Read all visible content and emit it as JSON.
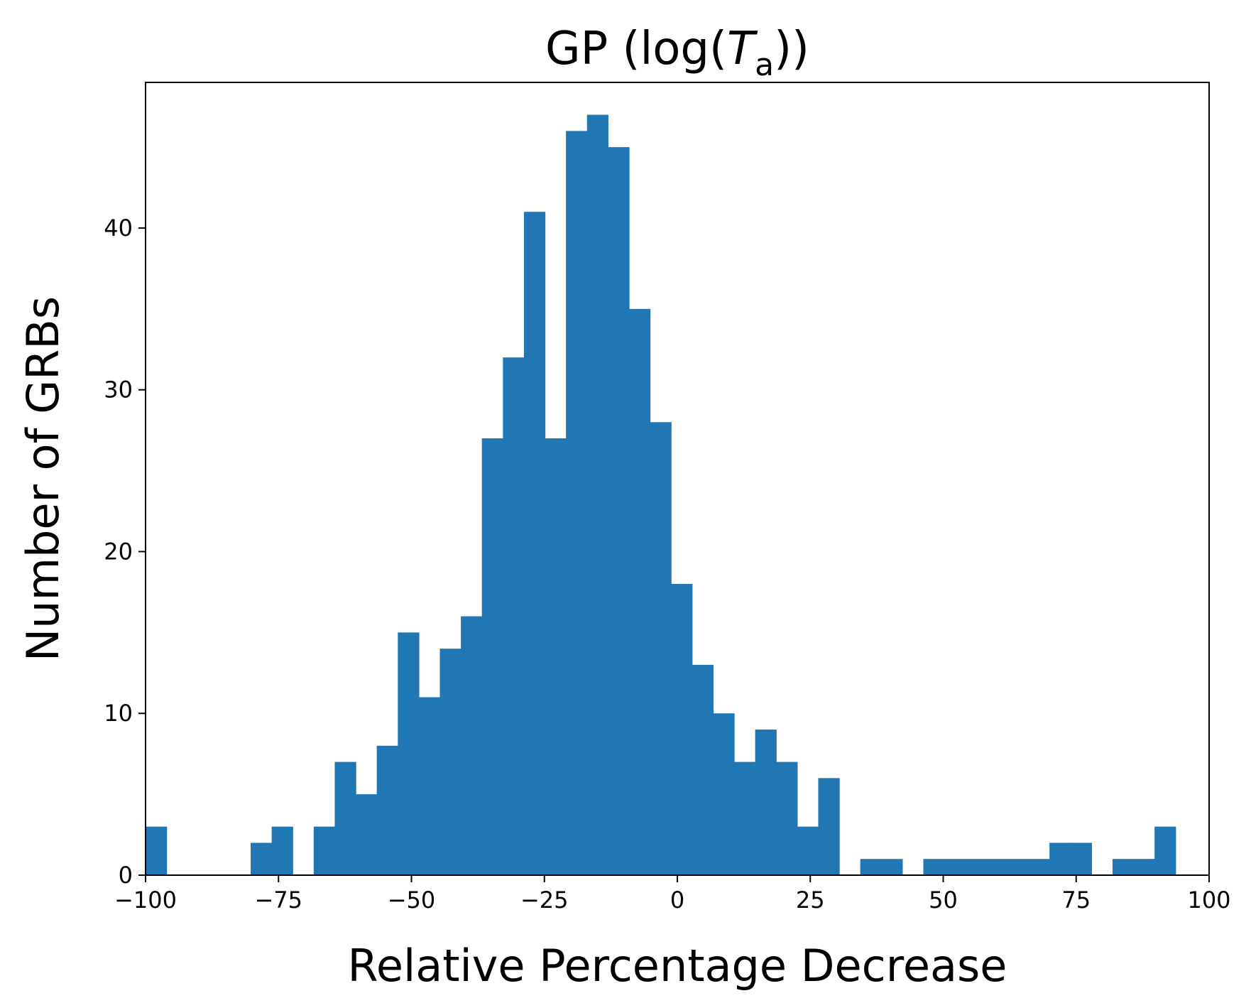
{
  "chart_data": {
    "type": "bar",
    "title": {
      "prefix": "GP (log(",
      "var": "T",
      "sub": "a",
      "suffix": "))"
    },
    "xlabel": "Relative Percentage Decrease",
    "ylabel": "Number of GRBs",
    "xlim": [
      -100,
      100
    ],
    "ylim": [
      0,
      49
    ],
    "x_ticks": [
      -100,
      -75,
      -50,
      -25,
      0,
      25,
      50,
      75,
      100
    ],
    "x_tick_labels": [
      "−100",
      "−75",
      "−50",
      "−25",
      "0",
      "25",
      "50",
      "75",
      "100"
    ],
    "y_ticks": [
      0,
      10,
      20,
      30,
      40
    ],
    "y_tick_labels": [
      "0",
      "10",
      "20",
      "30",
      "40"
    ],
    "bar_color": "#2077b4",
    "bin_start": -100,
    "bin_width": 3.953,
    "values": [
      3,
      0,
      0,
      0,
      0,
      2,
      3,
      0,
      3,
      7,
      5,
      8,
      15,
      11,
      14,
      16,
      27,
      32,
      41,
      27,
      46,
      47,
      45,
      35,
      28,
      18,
      13,
      10,
      7,
      9,
      7,
      3,
      6,
      0,
      1,
      1,
      0,
      1,
      1,
      1,
      1,
      1,
      1,
      2,
      2,
      0,
      1,
      1,
      3
    ],
    "grid": false
  }
}
